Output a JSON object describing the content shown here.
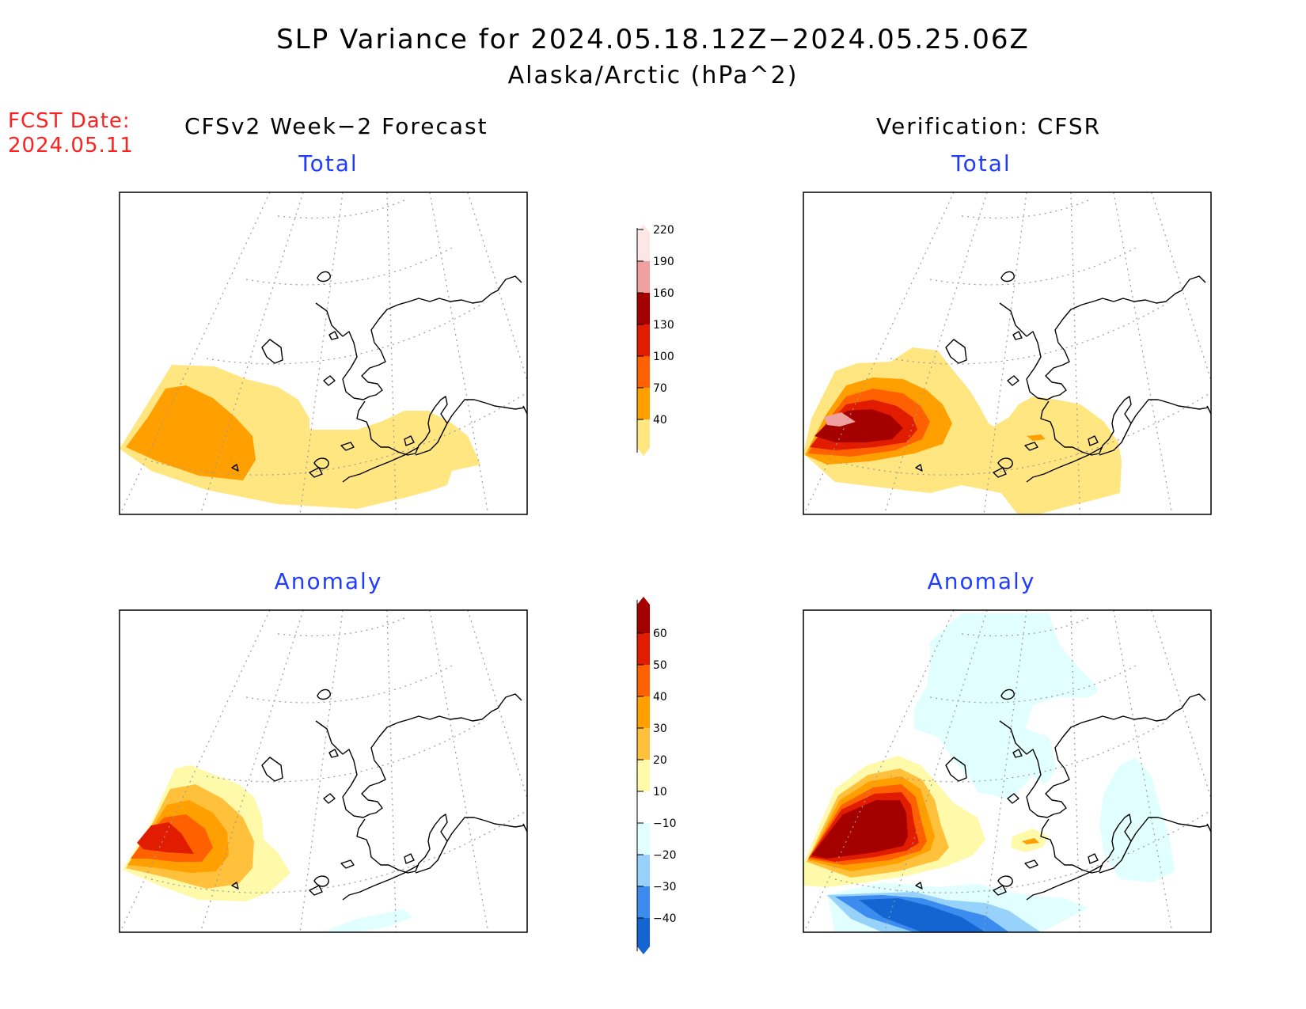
{
  "title": "SLP Variance for 2024.05.18.12Z−2024.05.25.06Z",
  "subtitle": "Alaska/Arctic (hPa^2)",
  "fcst_date": {
    "label": "FCST Date:",
    "value": "2024.05.11"
  },
  "left_header": "CFSv2 Week−2 Forecast",
  "right_header": "Verification: CFSR",
  "panels": {
    "forecast_total": {
      "title": "Total"
    },
    "verification_total": {
      "title": "Total"
    },
    "forecast_anomaly": {
      "title": "Anomaly"
    },
    "verification_anomaly": {
      "title": "Anomaly"
    }
  },
  "colorbars": {
    "total": {
      "labels": [
        "40",
        "70",
        "100",
        "130",
        "160",
        "190",
        "220"
      ],
      "colors": [
        "#ffe680",
        "#ffa000",
        "#ff6000",
        "#e11c00",
        "#a50000",
        "#f0a0a0",
        "#fde6e6"
      ]
    },
    "anomaly": {
      "labels": [
        "−40",
        "−30",
        "−20",
        "−10",
        "10",
        "20",
        "30",
        "40",
        "50",
        "60"
      ],
      "colors": [
        "#1464d2",
        "#3c8cf0",
        "#96d2fa",
        "#e1ffff",
        "#ffffff",
        "#fffaaa",
        "#ffc03c",
        "#ffa000",
        "#ff6000",
        "#e11c00",
        "#a50000"
      ]
    }
  }
}
